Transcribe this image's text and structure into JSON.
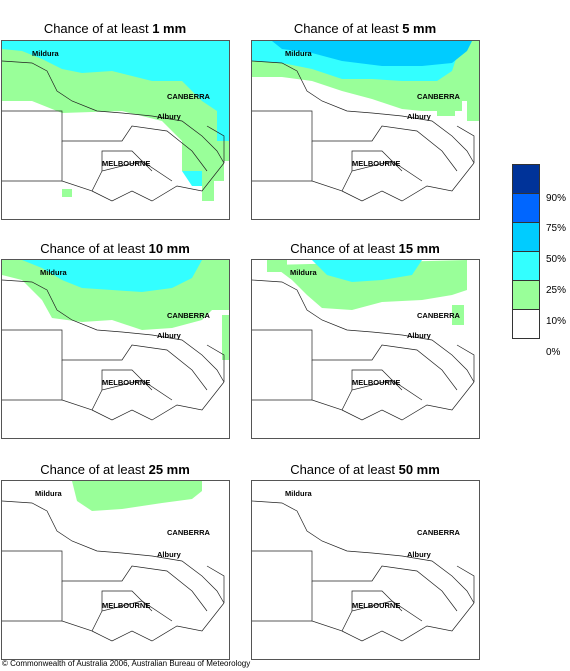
{
  "panels": [
    {
      "title_prefix": "Chance of at least ",
      "amount": "1 mm"
    },
    {
      "title_prefix": "Chance of at least ",
      "amount": "5 mm"
    },
    {
      "title_prefix": "Chance of at least ",
      "amount": "10 mm"
    },
    {
      "title_prefix": "Chance of at least ",
      "amount": "15 mm"
    },
    {
      "title_prefix": "Chance of at least ",
      "amount": "25 mm"
    },
    {
      "title_prefix": "Chance of at least ",
      "amount": "50 mm"
    }
  ],
  "places": {
    "mildura": "Mildura",
    "canberra": "CANBERRA",
    "albury": "Albury",
    "melbourne": "MELBOURNE"
  },
  "legend": {
    "labels": [
      "90%",
      "75%",
      "50%",
      "25%",
      "10%",
      "0%"
    ],
    "colors": [
      "#003399",
      "#0066ff",
      "#00ccff",
      "#33ffff",
      "#99ff99",
      "#ffffff"
    ]
  },
  "footer": "© Commonwealth of Australia 2006, Australian Bureau of Meteorology"
}
